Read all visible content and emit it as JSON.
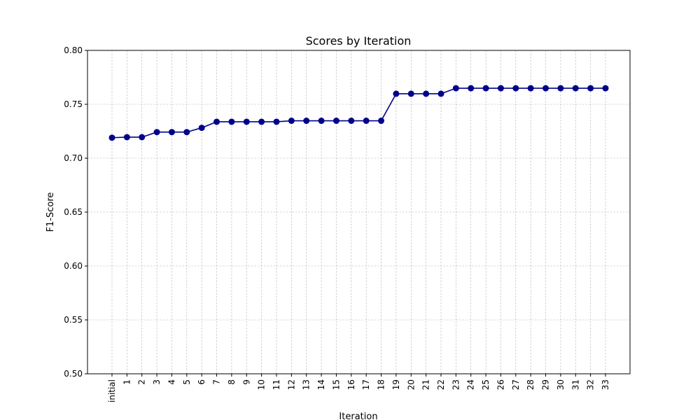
{
  "chart_data": {
    "type": "line",
    "title": "Scores by Iteration",
    "xlabel": "Iteration",
    "ylabel": "F1-Score",
    "ylim": [
      0.5,
      0.8
    ],
    "yticks": [
      "0.50",
      "0.55",
      "0.60",
      "0.65",
      "0.70",
      "0.75",
      "0.80"
    ],
    "categories": [
      "initial",
      "1",
      "2",
      "3",
      "4",
      "5",
      "6",
      "7",
      "8",
      "9",
      "10",
      "11",
      "12",
      "13",
      "14",
      "15",
      "16",
      "17",
      "18",
      "19",
      "20",
      "21",
      "22",
      "23",
      "24",
      "25",
      "26",
      "27",
      "28",
      "29",
      "30",
      "31",
      "32",
      "33"
    ],
    "values": [
      0.719,
      0.7195,
      0.7195,
      0.7242,
      0.7242,
      0.7242,
      0.7282,
      0.7338,
      0.7338,
      0.7338,
      0.7338,
      0.7338,
      0.7347,
      0.7347,
      0.7347,
      0.7347,
      0.7347,
      0.7347,
      0.7347,
      0.7598,
      0.7598,
      0.7598,
      0.7598,
      0.7649,
      0.7649,
      0.7649,
      0.7649,
      0.7649,
      0.7649,
      0.7649,
      0.7649,
      0.7649,
      0.7649,
      0.7649
    ],
    "grid": true,
    "x_tick_rotation": "vertical",
    "colors": {
      "line": "#00008b",
      "marker": "#00008b",
      "grid": "#b0b0b0"
    }
  }
}
